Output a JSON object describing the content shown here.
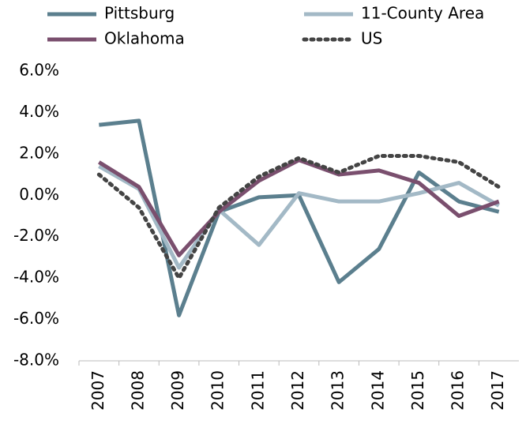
{
  "chart_data": {
    "type": "line",
    "categories": [
      "2007",
      "2008",
      "2009",
      "2010",
      "2011",
      "2012",
      "2013",
      "2014",
      "2015",
      "2016",
      "2017"
    ],
    "series": [
      {
        "name": "Pittsburg",
        "color": "#5b7f8e",
        "style": "solid",
        "values": [
          3.4,
          3.6,
          -5.8,
          -0.8,
          -0.1,
          0.0,
          -4.2,
          -2.6,
          1.1,
          -0.3,
          -0.8
        ]
      },
      {
        "name": "11-County Area",
        "color": "#a3b9c6",
        "style": "solid",
        "values": [
          1.4,
          0.3,
          -3.5,
          -0.7,
          -2.4,
          0.1,
          -0.3,
          -0.3,
          0.1,
          0.6,
          -0.5
        ]
      },
      {
        "name": "Oklahoma",
        "color": "#7a4f6e",
        "style": "solid",
        "values": [
          1.6,
          0.4,
          -2.9,
          -0.8,
          0.7,
          1.7,
          1.0,
          1.2,
          0.6,
          -1.0,
          -0.3
        ]
      },
      {
        "name": "US",
        "color": "#444444",
        "style": "dotted",
        "values": [
          1.0,
          -0.6,
          -4.0,
          -0.6,
          0.9,
          1.8,
          1.1,
          1.9,
          1.9,
          1.6,
          0.4
        ]
      }
    ],
    "ylim": [
      -8,
      6
    ],
    "yticks": [
      {
        "value": -8,
        "label": "-8.0%"
      },
      {
        "value": -6,
        "label": "-6.0%"
      },
      {
        "value": -4,
        "label": "-4.0%"
      },
      {
        "value": -2,
        "label": "-2.0%"
      },
      {
        "value": 0,
        "label": "0.0%"
      },
      {
        "value": 2,
        "label": "2.0%"
      },
      {
        "value": 4,
        "label": "4.0%"
      },
      {
        "value": 6,
        "label": "6.0%"
      }
    ],
    "grid": false,
    "legend": "top"
  }
}
